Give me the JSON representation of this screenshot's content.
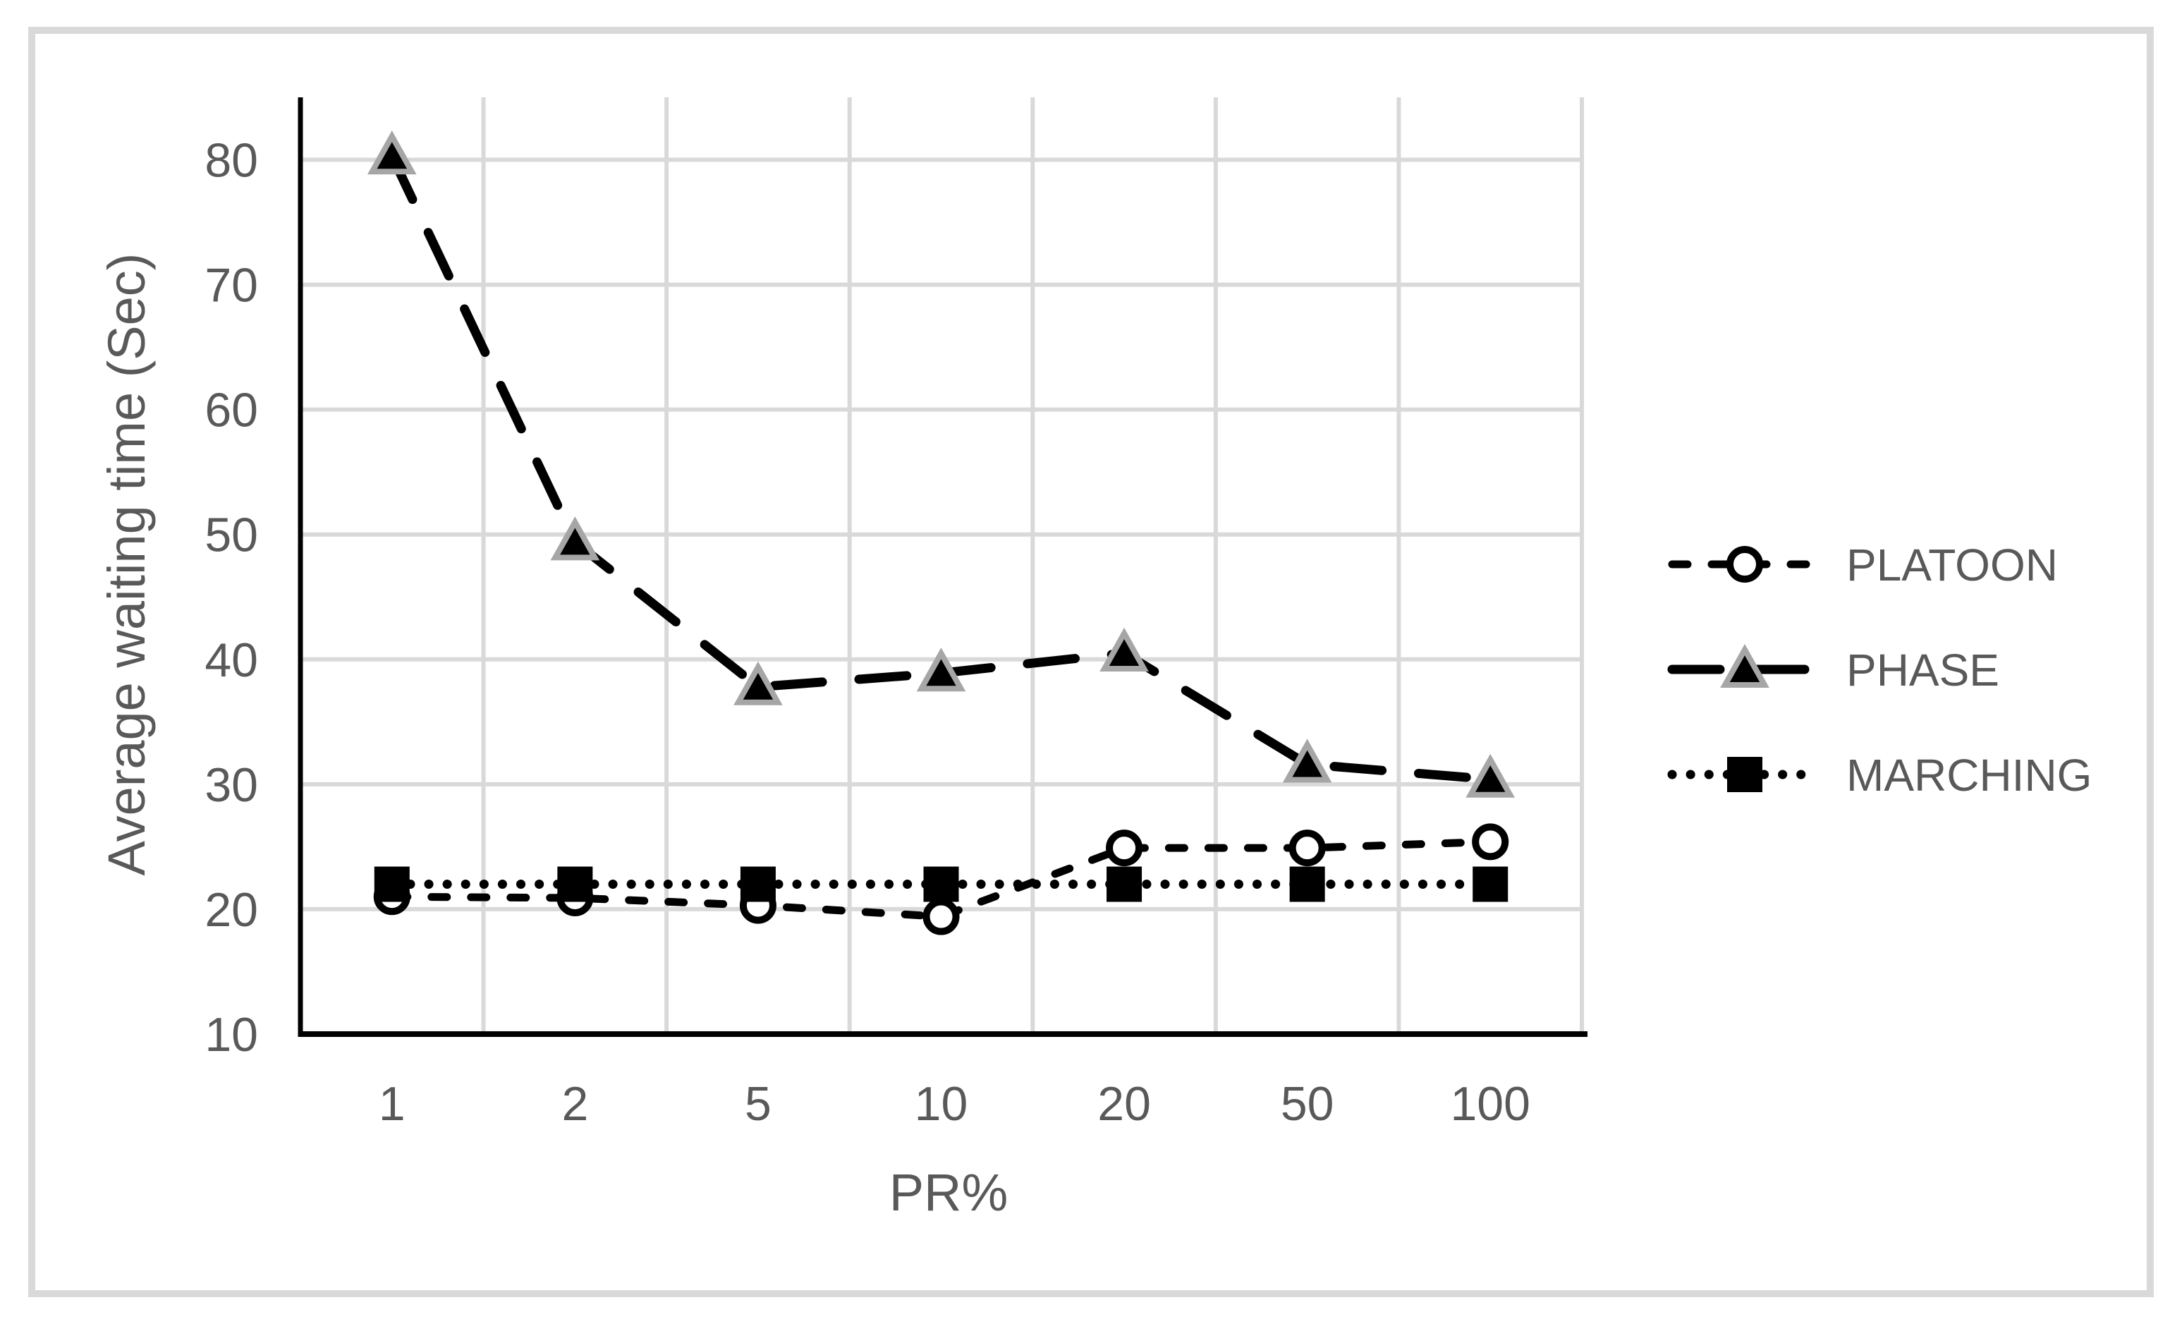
{
  "figure": {
    "background": "#ffffff",
    "frame_color": "#d9d9d9"
  },
  "chart_data": {
    "type": "line",
    "title": "",
    "xlabel": "PR%",
    "ylabel": "Average waiting time (Sec)",
    "categories": [
      "1",
      "2",
      "5",
      "10",
      "20",
      "50",
      "100"
    ],
    "ylim": [
      10,
      85
    ],
    "yticks": [
      10,
      20,
      30,
      40,
      50,
      60,
      70,
      80
    ],
    "grid": true,
    "legend_position": "right",
    "gridline_color": "#d9d9d9",
    "axis_line_color": "#000000",
    "tick_color": "#595959",
    "series": [
      {
        "name": "PLATOON",
        "line": "dashed",
        "marker": "circle-open",
        "color": "#000000",
        "values": [
          21.0,
          20.9,
          20.3,
          19.4,
          24.9,
          24.9,
          25.4
        ]
      },
      {
        "name": "PHASE",
        "line": "long-dash",
        "marker": "triangle-filled",
        "color": "#000000",
        "marker_outline": "#a6a6a6",
        "values": [
          80.3,
          49.4,
          37.8,
          38.9,
          40.5,
          31.6,
          30.4
        ]
      },
      {
        "name": "MARCHING",
        "line": "dotted",
        "marker": "square-filled",
        "color": "#000000",
        "values": [
          22.0,
          22.0,
          22.0,
          22.0,
          22.0,
          22.0,
          22.0
        ]
      }
    ]
  }
}
